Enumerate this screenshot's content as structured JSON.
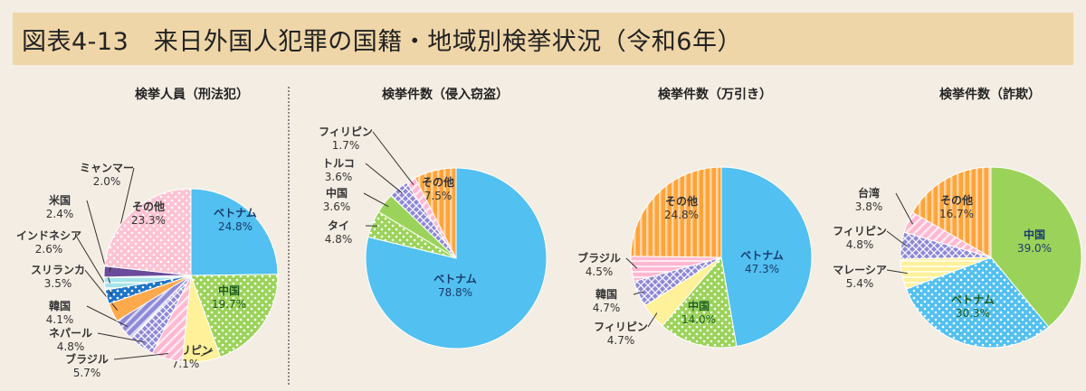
{
  "title": "図表4-13　来日外国人犯罪の国籍・地域別検挙状況（令和6年）",
  "chart_data": [
    {
      "type": "pie",
      "title": "検挙人員（刑法犯）",
      "slices": [
        {
          "label": "ベトナム",
          "value": 24.8
        },
        {
          "label": "中国",
          "value": 19.7
        },
        {
          "label": "フィリピン",
          "value": 7.1
        },
        {
          "label": "ブラジル",
          "value": 5.7
        },
        {
          "label": "ネパール",
          "value": 4.8
        },
        {
          "label": "韓国",
          "value": 4.1
        },
        {
          "label": "スリランカ",
          "value": 3.5
        },
        {
          "label": "インドネシア",
          "value": 2.6
        },
        {
          "label": "米国",
          "value": 2.4
        },
        {
          "label": "ミャンマー",
          "value": 2.0
        },
        {
          "label": "その他",
          "value": 23.3
        }
      ]
    },
    {
      "type": "pie",
      "title": "検挙件数（侵入窃盗）",
      "slices": [
        {
          "label": "ベトナム",
          "value": 78.8
        },
        {
          "label": "タイ",
          "value": 4.8
        },
        {
          "label": "中国",
          "value": 3.6
        },
        {
          "label": "トルコ",
          "value": 3.6
        },
        {
          "label": "フィリピン",
          "value": 1.7
        },
        {
          "label": "その他",
          "value": 7.5
        }
      ]
    },
    {
      "type": "pie",
      "title": "検挙件数（万引き）",
      "slices": [
        {
          "label": "ベトナム",
          "value": 47.3
        },
        {
          "label": "中国",
          "value": 14.0
        },
        {
          "label": "フィリピン",
          "value": 4.7
        },
        {
          "label": "韓国",
          "value": 4.7
        },
        {
          "label": "ブラジル",
          "value": 4.5
        },
        {
          "label": "その他",
          "value": 24.8
        }
      ]
    },
    {
      "type": "pie",
      "title": "検挙件数（詐欺）",
      "slices": [
        {
          "label": "中国",
          "value": 39.0
        },
        {
          "label": "ベトナム",
          "value": 30.3
        },
        {
          "label": "マレーシア",
          "value": 5.4
        },
        {
          "label": "フィリピン",
          "value": 4.8
        },
        {
          "label": "台湾",
          "value": 3.8
        },
        {
          "label": "その他",
          "value": 16.7
        }
      ]
    }
  ],
  "colors": {
    "ベトナム": "#52c0f0",
    "中国": "#9bd35a",
    "フィリピン": "#fff09a",
    "ブラジル": "#ffb8d0",
    "ネパール": "#8e88d8",
    "韓国": "#8e88d8",
    "スリランカ": "#ffa94d",
    "インドネシア": "#1e73c8",
    "米国": "#a6e3ea",
    "ミャンマー": "#6a4a9a",
    "その他_orange": "#ffa43a",
    "その他_pink": "#ffc2d2",
    "タイ": "#9bd35a",
    "トルコ": "#8e88d8",
    "マレーシア": "#fff09a",
    "台湾": "#ffb8d0"
  }
}
